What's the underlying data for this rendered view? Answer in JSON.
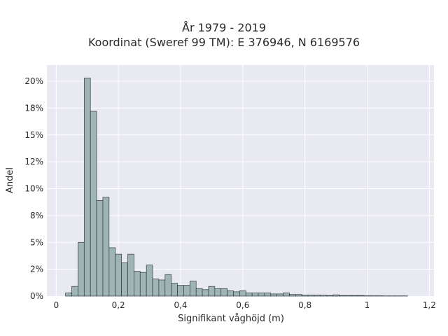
{
  "chart_data": {
    "type": "bar",
    "title": "År 1979 - 2019",
    "subtitle": "Koordinat (Sweref 99 TM): E 376946, N 6169576",
    "xlabel": "Signifikant våghöjd (m)",
    "ylabel": "Andel",
    "xlim": [
      -0.03,
      1.215
    ],
    "ylim": [
      0,
      21.5
    ],
    "x_ticks": [
      0,
      0.2,
      0.4,
      0.6,
      0.8,
      1,
      1.2
    ],
    "x_tick_labels": [
      "0",
      "0,2",
      "0,4",
      "0,6",
      "0,8",
      "1",
      "1,2"
    ],
    "y_ticks": [
      0,
      2.5,
      5,
      7.5,
      10,
      12.5,
      15,
      17.5,
      20
    ],
    "y_tick_labels": [
      "0%",
      "2%",
      "5%",
      "8%",
      "10%",
      "12%",
      "15%",
      "18%",
      "20%"
    ],
    "bin_width": 0.02,
    "bin_starts": [
      0.03,
      0.05,
      0.07,
      0.09,
      0.11,
      0.13,
      0.15,
      0.17,
      0.19,
      0.21,
      0.23,
      0.25,
      0.27,
      0.29,
      0.31,
      0.33,
      0.35,
      0.37,
      0.39,
      0.41,
      0.43,
      0.45,
      0.47,
      0.49,
      0.51,
      0.53,
      0.55,
      0.57,
      0.59,
      0.61,
      0.63,
      0.65,
      0.67,
      0.69,
      0.71,
      0.73,
      0.75,
      0.77,
      0.79,
      0.81,
      0.83,
      0.85,
      0.87,
      0.89,
      0.91,
      0.93,
      0.95,
      0.97,
      0.99,
      1.01,
      1.03,
      1.05,
      1.07,
      1.09,
      1.11
    ],
    "values": [
      0.3,
      0.9,
      5.0,
      20.3,
      17.2,
      8.9,
      9.2,
      4.5,
      3.9,
      3.1,
      3.9,
      2.3,
      2.2,
      2.9,
      1.6,
      1.5,
      2.0,
      1.2,
      1.0,
      1.0,
      1.4,
      0.7,
      0.6,
      0.9,
      0.7,
      0.7,
      0.5,
      0.4,
      0.5,
      0.3,
      0.3,
      0.3,
      0.3,
      0.2,
      0.2,
      0.3,
      0.15,
      0.15,
      0.1,
      0.1,
      0.1,
      0.08,
      0.05,
      0.12,
      0.05,
      0.05,
      0.05,
      0.05,
      0.03,
      0.03,
      0.03,
      0.02,
      0.02,
      0.02,
      0.02
    ],
    "grid": true,
    "colors": {
      "bar_fill": "#9fb5b5",
      "bar_stroke": "#2f3a3a",
      "plot_bg": "#e9e9f2",
      "grid": "#ffffff"
    }
  }
}
